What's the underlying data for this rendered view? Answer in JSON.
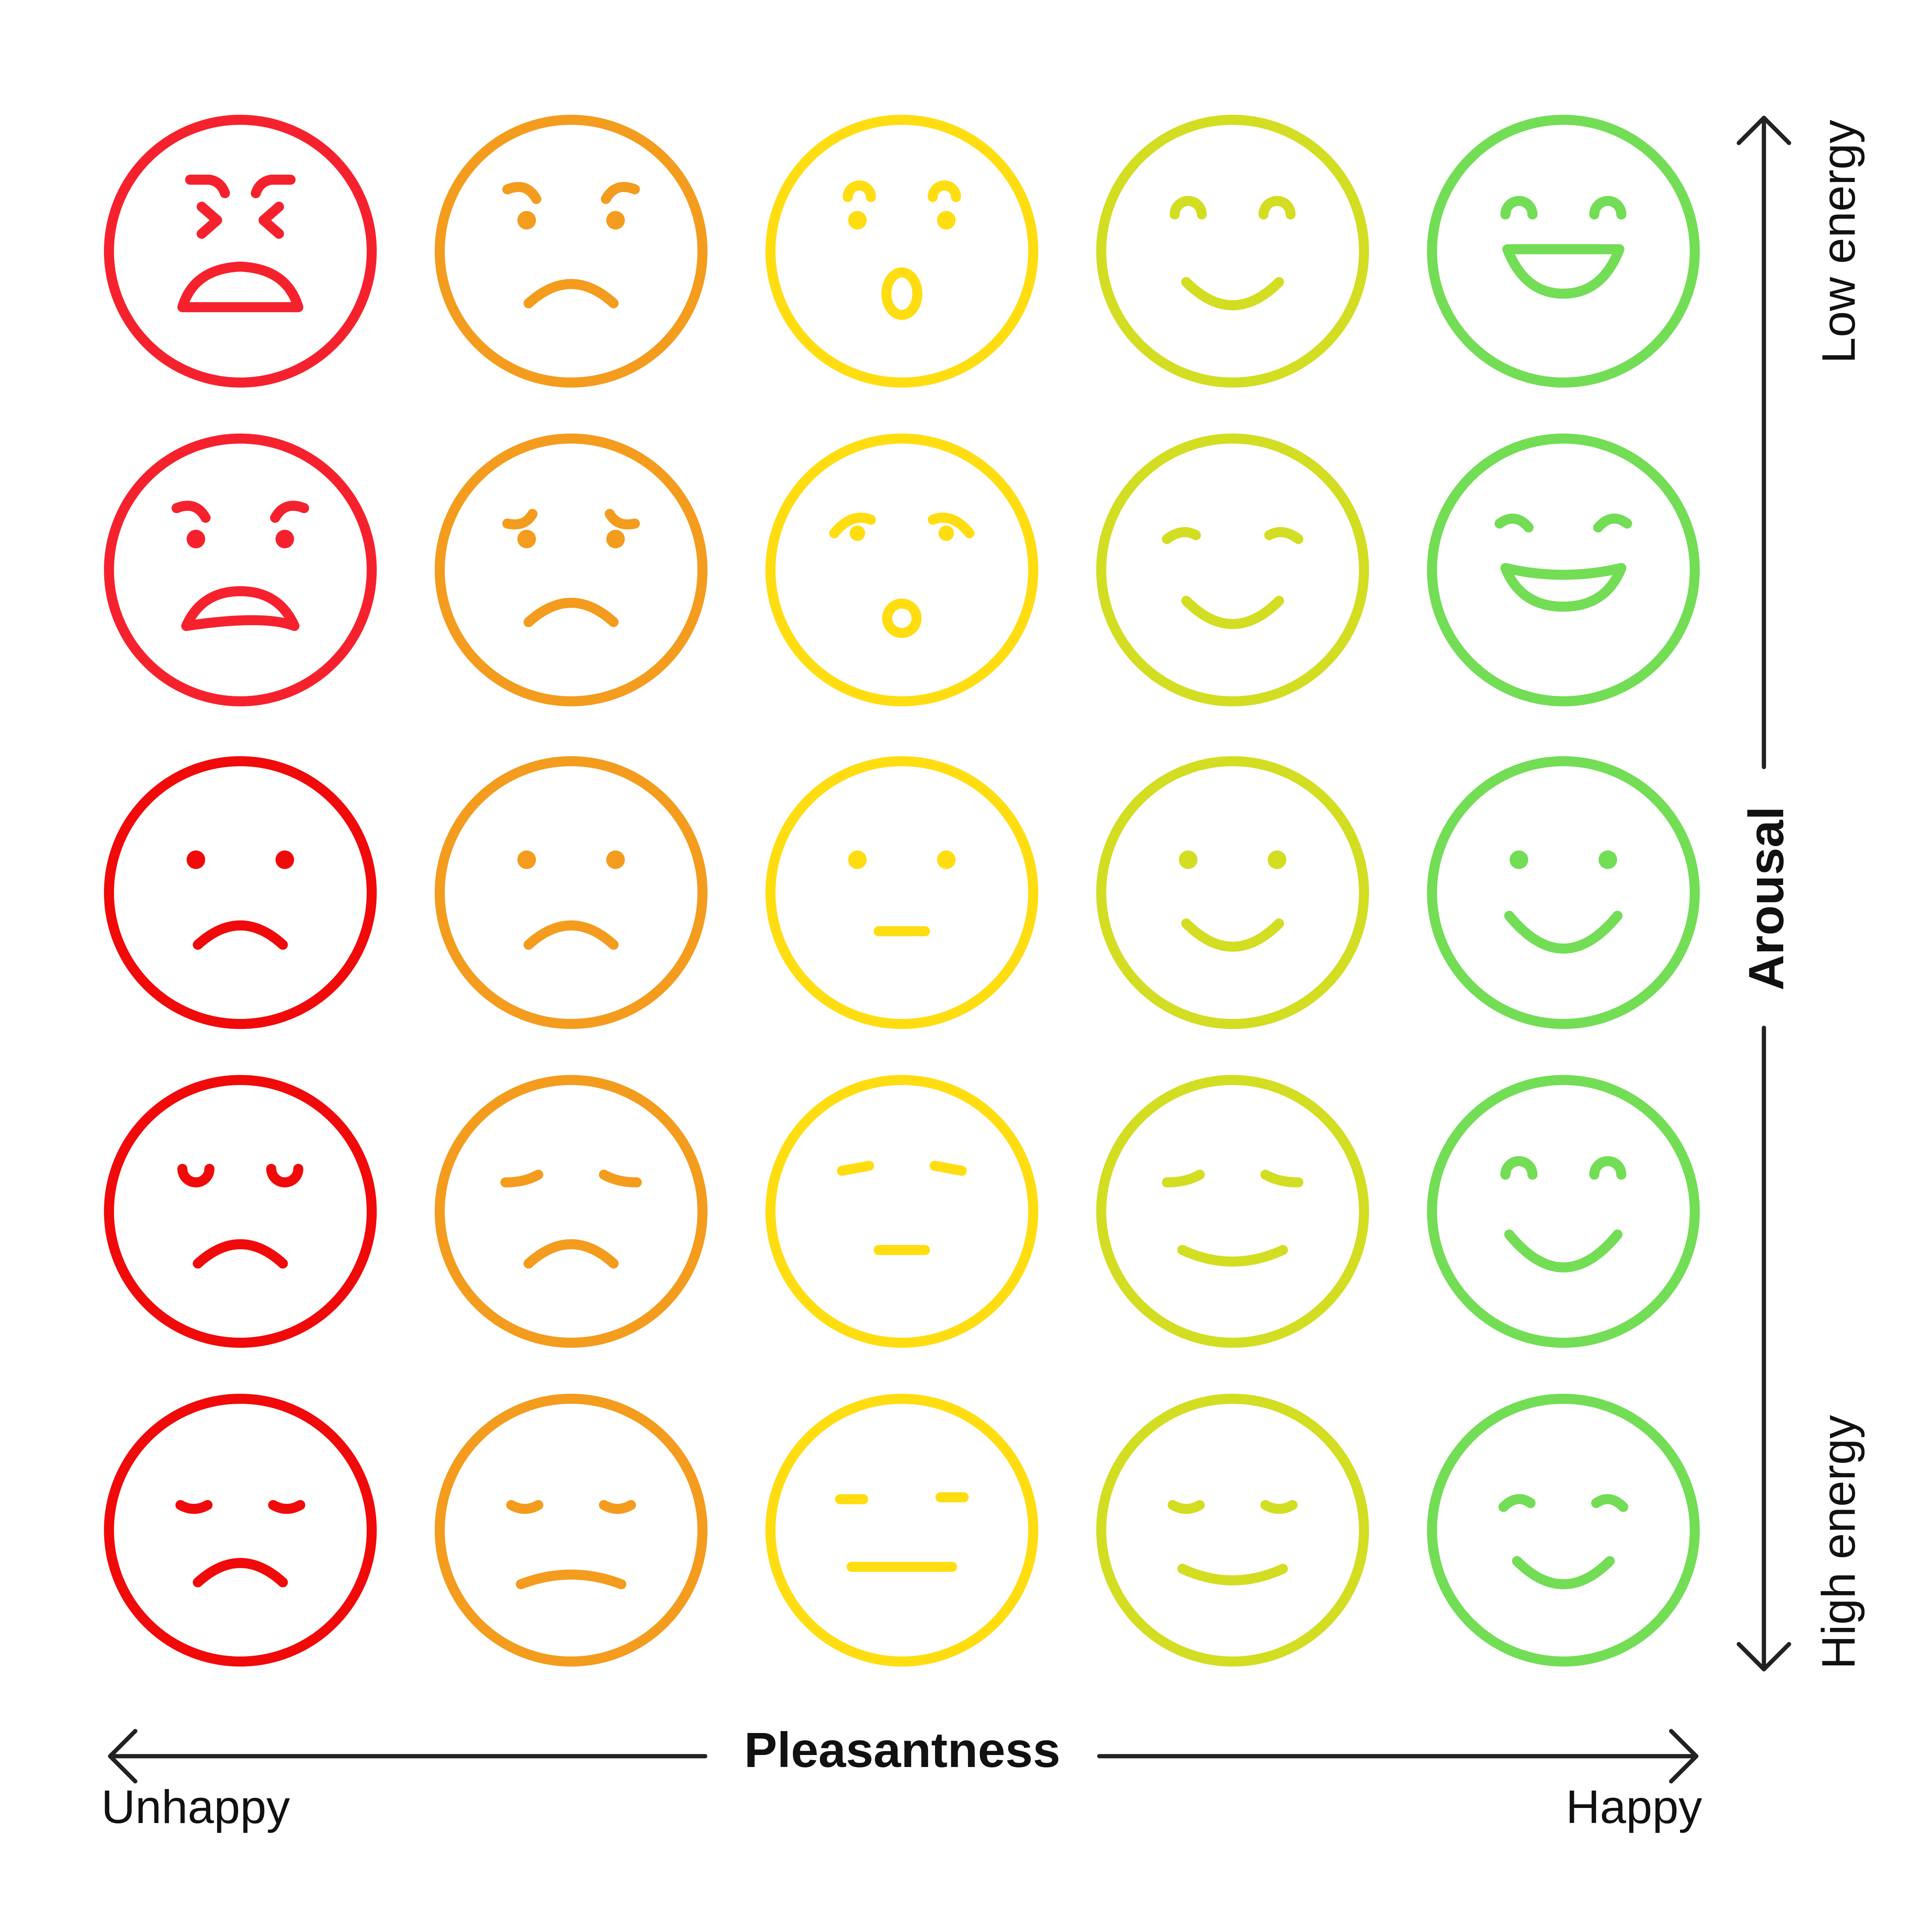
{
  "colors": {
    "column_1": "#f5222d",
    "column_1_dark": "#f00a0a",
    "column_2": "#f39c1e",
    "column_3": "#ffdd11",
    "column_4": "#d3dd22",
    "column_5": "#72dd55",
    "axis": "#222222",
    "text": "#111111",
    "background": "#ffffff"
  },
  "x_axis": {
    "title": "Pleasantness",
    "left_label": "Unhappy",
    "right_label": "Happy"
  },
  "y_axis": {
    "title": "Arousal",
    "top_label": "Low energy",
    "bottom_label": "High energy"
  },
  "faces": [
    [
      {
        "name": "face-furious",
        "color": "column_1",
        "brows": "x-squint",
        "eyes": "none",
        "mouth": "open-frown"
      },
      {
        "name": "face-annoyed",
        "color": "column_2",
        "brows": "angry",
        "eyes": "dot",
        "mouth": "frown"
      },
      {
        "name": "face-shocked",
        "color": "column_3",
        "brows": "raised-arc",
        "eyes": "dot",
        "mouth": "open-o-tall"
      },
      {
        "name": "face-cheerful",
        "color": "column_4",
        "brows": "none",
        "eyes": "happy-arc",
        "mouth": "smile"
      },
      {
        "name": "face-laughing",
        "color": "column_5",
        "brows": "none",
        "eyes": "happy-arc",
        "mouth": "open-grin"
      }
    ],
    [
      {
        "name": "face-angry",
        "color": "column_1",
        "brows": "angry",
        "eyes": "dot",
        "mouth": "open-frown-wide"
      },
      {
        "name": "face-worried",
        "color": "column_2",
        "brows": "worried",
        "eyes": "dot",
        "mouth": "frown"
      },
      {
        "name": "face-surprised",
        "color": "column_3",
        "brows": "surprised",
        "eyes": "dot-small",
        "mouth": "open-o"
      },
      {
        "name": "face-pleased",
        "color": "column_4",
        "brows": "soft",
        "eyes": "none",
        "mouth": "smile"
      },
      {
        "name": "face-delighted",
        "color": "column_5",
        "brows": "none",
        "eyes": "squint-happy",
        "mouth": "open-grin-wide"
      }
    ],
    [
      {
        "name": "face-sad",
        "color": "column_1_dark",
        "brows": "none",
        "eyes": "dot",
        "mouth": "frown"
      },
      {
        "name": "face-unhappy",
        "color": "column_2",
        "brows": "none",
        "eyes": "dot",
        "mouth": "frown"
      },
      {
        "name": "face-neutral",
        "color": "column_3",
        "brows": "none",
        "eyes": "dot",
        "mouth": "flat-short"
      },
      {
        "name": "face-content",
        "color": "column_4",
        "brows": "none",
        "eyes": "dot",
        "mouth": "smile"
      },
      {
        "name": "face-happy",
        "color": "column_5",
        "brows": "none",
        "eyes": "dot",
        "mouth": "smile-wide"
      }
    ],
    [
      {
        "name": "face-downcast",
        "color": "column_1_dark",
        "brows": "none",
        "eyes": "closed-down",
        "mouth": "frown"
      },
      {
        "name": "face-gloomy",
        "color": "column_2",
        "brows": "none",
        "eyes": "droopy-lids",
        "mouth": "frown"
      },
      {
        "name": "face-bored",
        "color": "column_3",
        "brows": "none",
        "eyes": "slant-lids",
        "mouth": "flat-short"
      },
      {
        "name": "face-relaxed",
        "color": "column_4",
        "brows": "none",
        "eyes": "droopy-lids",
        "mouth": "smile-flat"
      },
      {
        "name": "face-serene",
        "color": "column_5",
        "brows": "none",
        "eyes": "happy-arc",
        "mouth": "smile-wide"
      }
    ],
    [
      {
        "name": "face-exhausted",
        "color": "column_1_dark",
        "brows": "none",
        "eyes": "tired-lids",
        "mouth": "frown"
      },
      {
        "name": "face-weary",
        "color": "column_2",
        "brows": "none",
        "eyes": "tired-lids",
        "mouth": "frown-flat"
      },
      {
        "name": "face-indifferent",
        "color": "column_3",
        "brows": "none",
        "eyes": "flat-lines",
        "mouth": "flat-long"
      },
      {
        "name": "face-calm",
        "color": "column_4",
        "brows": "none",
        "eyes": "tired-lids",
        "mouth": "smile-flat"
      },
      {
        "name": "face-peaceful",
        "color": "column_5",
        "brows": "none",
        "eyes": "tired-lids-up",
        "mouth": "smile"
      }
    ]
  ]
}
